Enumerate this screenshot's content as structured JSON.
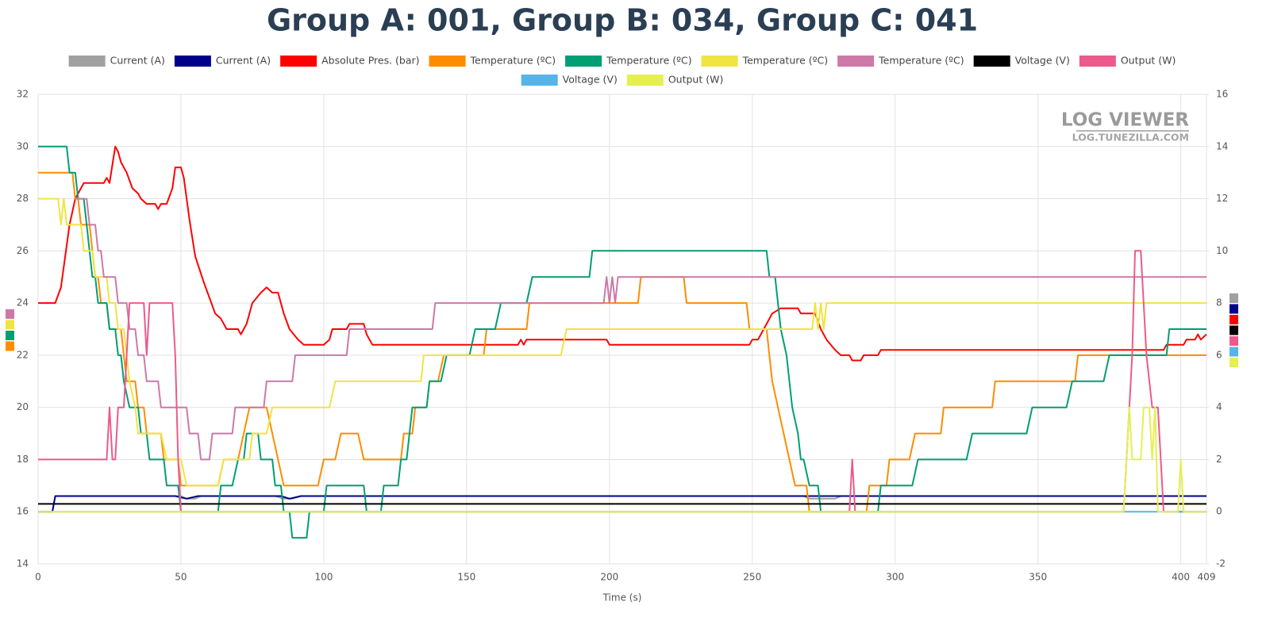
{
  "chart_data": {
    "type": "line",
    "title": "Group A: 001, Group B: 034, Group C: 041",
    "x_label": "Time (s)",
    "watermark": {
      "title": "LOG VIEWER",
      "subtitle": "LOG.TUNEZILLA.COM"
    },
    "xlim": [
      0,
      409
    ],
    "xticks": [
      0,
      50,
      100,
      150,
      200,
      250,
      300,
      350,
      400,
      409
    ],
    "ylim": [
      14,
      32
    ],
    "yticks": [
      14,
      16,
      18,
      20,
      22,
      24,
      26,
      28,
      30,
      32
    ],
    "y2lim": [
      -2,
      16
    ],
    "y2ticks": [
      -2,
      0,
      2,
      4,
      6,
      8,
      10,
      12,
      14,
      16
    ],
    "grid": true,
    "legend": "top",
    "series": [
      {
        "name": "Current (A)",
        "color": "#a0a0a0",
        "axis": "y2",
        "x": [
          0,
          5,
          6,
          50,
          52,
          55,
          57,
          83,
          86,
          89,
          92,
          268,
          270,
          279,
          281,
          409
        ],
        "values": [
          0,
          0,
          0.6,
          0.6,
          0.5,
          0.5,
          0.6,
          0.6,
          0.5,
          0.5,
          0.6,
          0.6,
          0.5,
          0.5,
          0.6,
          0.6
        ]
      },
      {
        "name": "Current (A)",
        "color": "#00008b",
        "axis": "y2",
        "x": [
          0,
          5,
          6,
          48,
          52,
          56,
          85,
          88,
          92,
          409
        ],
        "values": [
          0,
          0,
          0.6,
          0.6,
          0.5,
          0.6,
          0.6,
          0.5,
          0.6,
          0.6
        ]
      },
      {
        "name": "Absolute Pres. (bar)",
        "color": "#ff0000",
        "axis": "y2",
        "x": [
          0,
          6,
          8,
          11,
          13,
          15,
          16,
          23,
          24,
          25,
          27,
          28,
          29,
          31,
          33,
          35,
          36,
          38,
          41,
          42,
          43,
          45,
          47,
          48,
          50,
          51,
          53,
          55,
          58,
          60,
          62,
          64,
          66,
          70,
          71,
          73,
          75,
          78,
          80,
          82,
          84,
          86,
          88,
          91,
          93,
          100,
          102,
          103,
          108,
          109,
          114,
          115,
          117,
          168,
          169,
          170,
          171,
          199,
          200,
          249,
          250,
          252,
          254,
          257,
          260,
          266,
          267,
          272,
          274,
          276,
          279,
          281,
          284,
          285,
          288,
          289,
          294,
          295,
          394,
          395,
          401,
          402,
          405,
          406,
          407,
          409
        ],
        "values": [
          8,
          8,
          8.6,
          11,
          12,
          12.4,
          12.6,
          12.6,
          12.8,
          12.6,
          14,
          13.8,
          13.4,
          13,
          12.4,
          12.2,
          12,
          11.8,
          11.8,
          11.6,
          11.8,
          11.8,
          12.4,
          13.2,
          13.2,
          12.8,
          11.2,
          9.8,
          8.8,
          8.2,
          7.6,
          7.4,
          7,
          7,
          6.8,
          7.2,
          8,
          8.4,
          8.6,
          8.4,
          8.4,
          7.6,
          7,
          6.6,
          6.4,
          6.4,
          6.6,
          7,
          7,
          7.2,
          7.2,
          6.8,
          6.4,
          6.4,
          6.6,
          6.4,
          6.6,
          6.6,
          6.4,
          6.4,
          6.6,
          6.6,
          7,
          7.6,
          7.8,
          7.8,
          7.6,
          7.6,
          7,
          6.6,
          6.2,
          6,
          6,
          5.8,
          5.8,
          6,
          6,
          6.2,
          6.2,
          6.4,
          6.4,
          6.6,
          6.6,
          6.8,
          6.6,
          6.8
        ]
      },
      {
        "name": "Temperature (ºC)",
        "color": "#ff8c00",
        "x": [
          0,
          12,
          13,
          14,
          15,
          18,
          19,
          20,
          21,
          22,
          24,
          25,
          29,
          30,
          31,
          34,
          35,
          37,
          38,
          43,
          44,
          49,
          50,
          63,
          65,
          70,
          72,
          74,
          80,
          82,
          84,
          86,
          98,
          100,
          104,
          106,
          112,
          114,
          127,
          128,
          131,
          132,
          136,
          137,
          140,
          142,
          156,
          157,
          171,
          172,
          210,
          211,
          226,
          227,
          248,
          249,
          255,
          256,
          257,
          259,
          261,
          263,
          265,
          269,
          270,
          290,
          291,
          297,
          298,
          305,
          307,
          316,
          317,
          334,
          335,
          363,
          364,
          409
        ],
        "values": [
          29,
          29,
          28,
          28,
          27,
          27,
          26,
          25,
          25,
          24,
          24,
          23,
          23,
          22,
          21,
          21,
          20,
          20,
          19,
          19,
          18,
          18,
          17,
          17,
          18,
          18,
          19,
          20,
          20,
          19,
          18,
          17,
          17,
          18,
          18,
          19,
          19,
          18,
          18,
          19,
          19,
          20,
          20,
          21,
          21,
          22,
          22,
          23,
          23,
          24,
          24,
          25,
          25,
          24,
          24,
          23,
          23,
          22,
          21,
          20,
          19,
          18,
          17,
          17,
          16,
          16,
          17,
          17,
          18,
          18,
          19,
          19,
          20,
          20,
          21,
          21,
          22,
          22
        ]
      },
      {
        "name": "Temperature (ºC)",
        "color": "#009e73",
        "x": [
          0,
          10,
          11,
          13,
          14,
          16,
          18,
          19,
          20,
          21,
          24,
          25,
          27,
          28,
          29,
          30,
          32,
          35,
          36,
          38,
          39,
          44,
          45,
          49,
          50,
          63,
          64,
          68,
          70,
          72,
          73,
          77,
          78,
          82,
          83,
          85,
          86,
          88,
          89,
          94,
          95,
          100,
          101,
          114,
          115,
          120,
          121,
          126,
          127,
          129,
          131,
          136,
          137,
          141,
          143,
          151,
          153,
          160,
          162,
          171,
          173,
          193,
          194,
          255,
          256,
          258,
          259,
          260,
          262,
          263,
          264,
          266,
          267,
          268,
          270,
          273,
          274,
          294,
          295,
          306,
          308,
          325,
          327,
          346,
          348,
          360,
          362,
          373,
          375,
          395,
          396,
          409
        ],
        "values": [
          30,
          30,
          29,
          29,
          28,
          28,
          26,
          25,
          25,
          24,
          24,
          23,
          23,
          22,
          22,
          21,
          20,
          20,
          19,
          19,
          18,
          18,
          17,
          17,
          16,
          16,
          17,
          17,
          18,
          18,
          19,
          19,
          18,
          18,
          17,
          17,
          16,
          16,
          15,
          15,
          16,
          16,
          17,
          17,
          16,
          16,
          17,
          17,
          18,
          18,
          20,
          20,
          21,
          21,
          22,
          22,
          23,
          23,
          24,
          24,
          25,
          25,
          26,
          26,
          25,
          25,
          24,
          23,
          22,
          21,
          20,
          19,
          18,
          18,
          17,
          17,
          16,
          16,
          17,
          17,
          18,
          18,
          19,
          19,
          20,
          20,
          21,
          21,
          22,
          22,
          23,
          23
        ]
      },
      {
        "name": "Temperature (ºC)",
        "color": "#f0e442",
        "x": [
          0,
          7,
          8,
          9,
          10,
          15,
          16,
          19,
          20,
          24,
          25,
          27,
          28,
          30,
          31,
          32,
          34,
          35,
          43,
          45,
          50,
          52,
          63,
          65,
          74,
          75,
          80,
          82,
          102,
          104,
          134,
          135,
          183,
          185,
          271,
          272,
          273,
          274,
          275,
          276,
          409
        ],
        "values": [
          28,
          28,
          27,
          28,
          27,
          27,
          26,
          26,
          25,
          25,
          24,
          24,
          23,
          23,
          22,
          21,
          20,
          19,
          19,
          18,
          18,
          17,
          17,
          18,
          18,
          19,
          19,
          20,
          20,
          21,
          21,
          22,
          22,
          23,
          23,
          24,
          23,
          24,
          23,
          24,
          24
        ]
      },
      {
        "name": "Temperature (ºC)",
        "color": "#cc79a7",
        "x": [
          13,
          17,
          18,
          20,
          21,
          22,
          23,
          27,
          28,
          31,
          32,
          34,
          35,
          37,
          38,
          42,
          43,
          52,
          53,
          56,
          57,
          60,
          61,
          68,
          69,
          79,
          80,
          89,
          90,
          108,
          109,
          138,
          139,
          198,
          199,
          200,
          201,
          202,
          203,
          409
        ],
        "values": [
          28,
          28,
          27,
          27,
          26,
          26,
          25,
          25,
          24,
          24,
          23,
          23,
          22,
          22,
          21,
          21,
          20,
          20,
          19,
          19,
          18,
          18,
          19,
          19,
          20,
          20,
          21,
          21,
          22,
          22,
          23,
          23,
          24,
          24,
          25,
          24,
          25,
          24,
          25,
          25
        ]
      },
      {
        "name": "Voltage (V)",
        "color": "#000000",
        "axis": "y2",
        "x": [
          0,
          409
        ],
        "values": [
          0.3,
          0.3
        ]
      },
      {
        "name": "Output (W)",
        "color": "#ec5a8c",
        "axis": "y2",
        "x": [
          0,
          24,
          25,
          26,
          27,
          28,
          30,
          31,
          32,
          37,
          38,
          39,
          47,
          48,
          49,
          50,
          284,
          285,
          286,
          380,
          381,
          383,
          384,
          386,
          387,
          388,
          390,
          392,
          393,
          394,
          409
        ],
        "values": [
          2,
          2,
          4,
          2,
          2,
          4,
          4,
          6,
          8,
          8,
          6,
          8,
          8,
          6,
          2,
          0,
          0,
          2,
          0,
          0,
          2,
          6,
          10,
          10,
          8,
          6,
          4,
          4,
          2,
          0,
          0
        ]
      },
      {
        "name": "Voltage (V)",
        "color": "#56b4e9",
        "axis": "y2",
        "x": [
          0,
          409
        ],
        "values": [
          0,
          0
        ]
      },
      {
        "name": "Output (W)",
        "color": "#e5f050",
        "axis": "y2",
        "x": [
          0,
          380,
          381,
          382,
          383,
          386,
          387,
          389,
          390,
          391,
          392,
          399,
          400,
          401,
          409
        ],
        "values": [
          0,
          0,
          2,
          4,
          2,
          2,
          4,
          4,
          2,
          4,
          0,
          0,
          2,
          0,
          0
        ]
      }
    ]
  }
}
